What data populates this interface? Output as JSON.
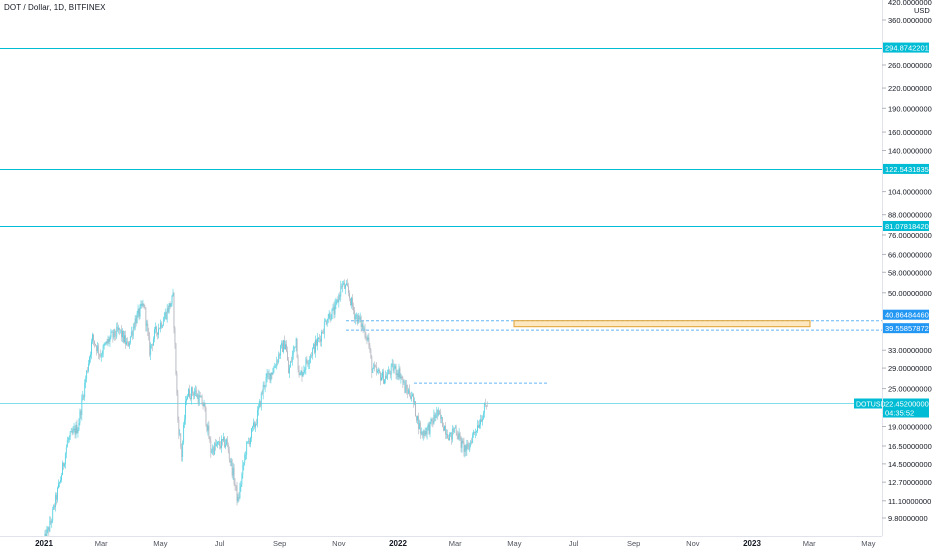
{
  "chart_data": {
    "type": "bar",
    "title": "DOT / Dollar, 1D, BITFINEX",
    "y_unit": "USD",
    "y_scale": "log",
    "ylim": [
      8.6,
      430
    ],
    "x_ticks": [
      "2021",
      "Mar",
      "May",
      "Jul",
      "Sep",
      "Nov",
      "2022",
      "Mar",
      "May",
      "Jul",
      "Sep",
      "Nov",
      "2023",
      "Mar",
      "May"
    ],
    "y_ticks": [
      "420.00000000",
      "360.00000000",
      "260.00000000",
      "220.00000000",
      "190.00000000",
      "160.00000000",
      "140.00000000",
      "104.00000000",
      "88.00000000",
      "76.00000000",
      "66.00000000",
      "58.00000000",
      "50.00000000",
      "33.00000000",
      "29.00000000",
      "25.00000000",
      "19.00000000",
      "16.50000000",
      "14.50000000",
      "12.70000000",
      "11.10000000",
      "9.80000000"
    ],
    "horizontal_levels": [
      {
        "value": 294.87422011,
        "label": "294.87422011"
      },
      {
        "value": 122.54318353,
        "label": "122.54318353"
      },
      {
        "value": 81.0781842,
        "label": "81.07818420"
      }
    ],
    "zone": {
      "upper": "40.86484460",
      "lower": "39.55857872",
      "upper_value": 40.86,
      "lower_value": 39.56
    },
    "dashed_level": 26.0,
    "last_price": {
      "symbol": "DOTUSD",
      "price": "22.45200000",
      "price_value": 22.452,
      "countdown": "04:35:52"
    },
    "waypoints": [
      [
        "2021-01-01",
        8.2
      ],
      [
        "2021-01-08",
        9.5
      ],
      [
        "2021-01-18",
        13.0
      ],
      [
        "2021-01-25",
        17.0
      ],
      [
        "2021-02-05",
        19.0
      ],
      [
        "2021-02-14",
        28.0
      ],
      [
        "2021-02-20",
        36.0
      ],
      [
        "2021-02-28",
        32.0
      ],
      [
        "2021-03-10",
        36.0
      ],
      [
        "2021-03-20",
        38.0
      ],
      [
        "2021-03-28",
        34.0
      ],
      [
        "2021-04-05",
        41.0
      ],
      [
        "2021-04-14",
        46.0
      ],
      [
        "2021-04-20",
        33.0
      ],
      [
        "2021-04-25",
        37.0
      ],
      [
        "2021-05-05",
        42.0
      ],
      [
        "2021-05-14",
        48.0
      ],
      [
        "2021-05-19",
        20.0
      ],
      [
        "2021-05-23",
        15.5
      ],
      [
        "2021-05-28",
        24.0
      ],
      [
        "2021-06-05",
        24.5
      ],
      [
        "2021-06-15",
        22.0
      ],
      [
        "2021-06-22",
        16.0
      ],
      [
        "2021-06-28",
        16.5
      ],
      [
        "2021-07-08",
        17.0
      ],
      [
        "2021-07-15",
        13.5
      ],
      [
        "2021-07-20",
        11.0
      ],
      [
        "2021-07-28",
        16.0
      ],
      [
        "2021-08-08",
        20.0
      ],
      [
        "2021-08-16",
        26.0
      ],
      [
        "2021-08-26",
        29.0
      ],
      [
        "2021-09-02",
        33.0
      ],
      [
        "2021-09-07",
        35.0
      ],
      [
        "2021-09-10",
        28.0
      ],
      [
        "2021-09-18",
        36.0
      ],
      [
        "2021-09-21",
        27.0
      ],
      [
        "2021-09-28",
        30.0
      ],
      [
        "2021-10-05",
        33.0
      ],
      [
        "2021-10-12",
        36.0
      ],
      [
        "2021-10-20",
        42.0
      ],
      [
        "2021-10-28",
        44.0
      ],
      [
        "2021-11-04",
        53.0
      ],
      [
        "2021-11-10",
        51.0
      ],
      [
        "2021-11-17",
        43.0
      ],
      [
        "2021-11-24",
        40.0
      ],
      [
        "2021-12-01",
        36.0
      ],
      [
        "2021-12-05",
        29.0
      ],
      [
        "2021-12-10",
        28.0
      ],
      [
        "2021-12-18",
        27.0
      ],
      [
        "2021-12-27",
        29.0
      ],
      [
        "2022-01-03",
        28.0
      ],
      [
        "2022-01-08",
        25.0
      ],
      [
        "2022-01-15",
        24.0
      ],
      [
        "2022-01-21",
        20.0
      ],
      [
        "2022-01-25",
        18.0
      ],
      [
        "2022-02-03",
        19.0
      ],
      [
        "2022-02-10",
        21.0
      ],
      [
        "2022-02-16",
        19.5
      ],
      [
        "2022-02-24",
        17.5
      ],
      [
        "2022-03-01",
        19.0
      ],
      [
        "2022-03-08",
        16.5
      ],
      [
        "2022-03-14",
        16.0
      ],
      [
        "2022-03-18",
        17.5
      ],
      [
        "2022-03-25",
        19.5
      ],
      [
        "2022-03-31",
        21.5
      ],
      [
        "2022-04-03",
        22.45
      ]
    ]
  }
}
